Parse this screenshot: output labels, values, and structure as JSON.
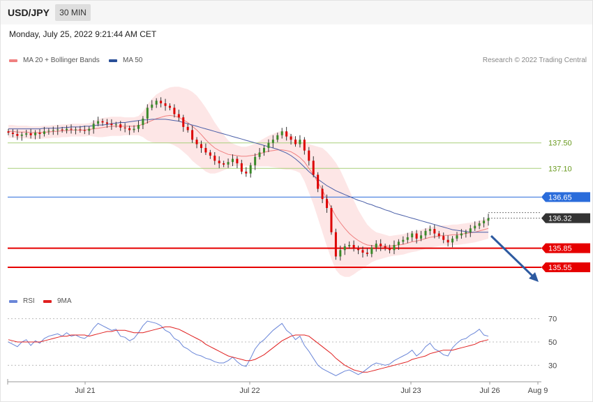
{
  "header": {
    "symbol": "USD/JPY",
    "interval": "30 MIN",
    "datetime": "Monday, July 25, 2022 9:21:44 AM CET"
  },
  "legend": {
    "ma20_label": "MA 20 + Bollinger Bands",
    "ma50_label": "MA 50",
    "rsi_label": "RSI",
    "ma9_label": "9MA",
    "copyright": "Research © 2022 Trading Central"
  },
  "colors": {
    "up": "#3a8a2a",
    "down": "#dd0000",
    "ma20": "#f08080",
    "band_fill": "#fde3e3",
    "ma50": "#4a5fa8",
    "support": "#e60000",
    "resistance_green": "#a8cf7a",
    "pivot_blue": "#2a6cdb",
    "current": "#333333",
    "rsi": "#6a86d8",
    "rsi_ma": "#e02020",
    "forecast_arrow": "#2d5aa0"
  },
  "chart_data": [
    {
      "type": "candlestick",
      "title": "USD/JPY",
      "ylim": [
        135.2,
        138.7
      ],
      "x_ticks": [
        "Jul 21",
        "Jul 22",
        "Jul 23",
        "Jul 26",
        "Aug 9"
      ],
      "levels": [
        {
          "value": 137.5,
          "label": "137.50",
          "kind": "resistance"
        },
        {
          "value": 137.1,
          "label": "137.10",
          "kind": "resistance"
        },
        {
          "value": 136.65,
          "label": "136.65",
          "kind": "pivot"
        },
        {
          "value": 136.32,
          "label": "136.32",
          "kind": "current"
        },
        {
          "value": 135.85,
          "label": "135.85",
          "kind": "support"
        },
        {
          "value": 135.55,
          "label": "135.55",
          "kind": "support"
        }
      ],
      "close": [
        137.66,
        137.64,
        137.61,
        137.63,
        137.65,
        137.62,
        137.66,
        137.64,
        137.68,
        137.69,
        137.7,
        137.71,
        137.7,
        137.72,
        137.71,
        137.71,
        137.7,
        137.69,
        137.72,
        137.8,
        137.84,
        137.82,
        137.8,
        137.78,
        137.79,
        137.74,
        137.73,
        137.7,
        137.72,
        137.78,
        137.88,
        138.05,
        138.1,
        138.16,
        138.12,
        138.08,
        138.05,
        137.95,
        137.9,
        137.75,
        137.7,
        137.55,
        137.48,
        137.42,
        137.35,
        137.3,
        137.22,
        137.18,
        137.16,
        137.2,
        137.25,
        137.18,
        137.05,
        137.02,
        137.15,
        137.28,
        137.35,
        137.42,
        137.5,
        137.55,
        137.62,
        137.68,
        137.6,
        137.55,
        137.48,
        137.55,
        137.38,
        137.22,
        137.0,
        136.78,
        136.62,
        136.48,
        136.1,
        135.72,
        135.82,
        135.88,
        135.9,
        135.85,
        135.82,
        135.78,
        135.76,
        135.86,
        135.92,
        135.88,
        135.85,
        135.82,
        135.9,
        135.95,
        135.98,
        136.02,
        136.08,
        136.0,
        136.05,
        136.12,
        136.15,
        136.08,
        136.04,
        135.98,
        135.94,
        136.0,
        136.05,
        136.08,
        136.1,
        136.16,
        136.2,
        136.24,
        136.28,
        136.32
      ],
      "ma20": [
        137.68,
        137.68,
        137.67,
        137.67,
        137.67,
        137.66,
        137.66,
        137.66,
        137.67,
        137.67,
        137.68,
        137.68,
        137.69,
        137.69,
        137.7,
        137.7,
        137.7,
        137.7,
        137.71,
        137.72,
        137.73,
        137.74,
        137.75,
        137.76,
        137.76,
        137.76,
        137.76,
        137.76,
        137.76,
        137.77,
        137.79,
        137.82,
        137.85,
        137.88,
        137.9,
        137.92,
        137.93,
        137.92,
        137.9,
        137.86,
        137.82,
        137.76,
        137.7,
        137.63,
        137.55,
        137.48,
        137.42,
        137.38,
        137.35,
        137.32,
        137.31,
        137.3,
        137.29,
        137.29,
        137.3,
        137.31,
        137.33,
        137.35,
        137.37,
        137.38,
        137.39,
        137.39,
        137.38,
        137.36,
        137.32,
        137.27,
        137.2,
        137.1,
        137.0,
        136.88,
        136.76,
        136.62,
        136.48,
        136.35,
        136.25,
        136.16,
        136.08,
        136.02,
        135.97,
        135.93,
        135.9,
        135.89,
        135.88,
        135.88,
        135.88,
        135.88,
        135.89,
        135.9,
        135.91,
        135.93,
        135.95,
        135.96,
        135.98,
        136.0,
        136.02,
        136.03,
        136.04,
        136.05,
        136.05,
        136.06,
        136.06,
        136.07,
        136.08,
        136.09,
        136.1,
        136.12,
        136.14,
        136.16
      ],
      "ma50": [
        137.72,
        137.72,
        137.72,
        137.72,
        137.72,
        137.72,
        137.72,
        137.72,
        137.73,
        137.73,
        137.73,
        137.73,
        137.74,
        137.74,
        137.75,
        137.75,
        137.75,
        137.76,
        137.76,
        137.77,
        137.78,
        137.78,
        137.79,
        137.8,
        137.81,
        137.82,
        137.82,
        137.83,
        137.84,
        137.85,
        137.86,
        137.86,
        137.87,
        137.87,
        137.87,
        137.87,
        137.86,
        137.85,
        137.84,
        137.82,
        137.8,
        137.78,
        137.76,
        137.74,
        137.72,
        137.7,
        137.68,
        137.66,
        137.64,
        137.62,
        137.6,
        137.58,
        137.56,
        137.54,
        137.52,
        137.5,
        137.48,
        137.46,
        137.44,
        137.42,
        137.4,
        137.37,
        137.34,
        137.3,
        137.25,
        137.19,
        137.12,
        137.05,
        136.99,
        136.93,
        136.88,
        136.83,
        136.79,
        136.75,
        136.72,
        136.69,
        136.66,
        136.63,
        136.6,
        136.58,
        136.55,
        136.53,
        136.5,
        136.48,
        136.45,
        136.43,
        136.4,
        136.38,
        136.36,
        136.34,
        136.32,
        136.3,
        136.28,
        136.26,
        136.24,
        136.22,
        136.2,
        136.18,
        136.16,
        136.14,
        136.13,
        136.12,
        136.11,
        136.1,
        136.1,
        136.1,
        136.1,
        136.1
      ],
      "band_width": [
        0.1,
        0.1,
        0.1,
        0.1,
        0.1,
        0.1,
        0.1,
        0.1,
        0.1,
        0.1,
        0.1,
        0.1,
        0.1,
        0.1,
        0.1,
        0.1,
        0.1,
        0.1,
        0.1,
        0.12,
        0.14,
        0.15,
        0.15,
        0.15,
        0.15,
        0.15,
        0.14,
        0.14,
        0.14,
        0.15,
        0.2,
        0.28,
        0.34,
        0.38,
        0.4,
        0.42,
        0.44,
        0.46,
        0.48,
        0.5,
        0.52,
        0.54,
        0.54,
        0.52,
        0.5,
        0.46,
        0.4,
        0.34,
        0.28,
        0.22,
        0.18,
        0.16,
        0.15,
        0.15,
        0.16,
        0.18,
        0.2,
        0.22,
        0.24,
        0.26,
        0.28,
        0.3,
        0.3,
        0.28,
        0.26,
        0.24,
        0.3,
        0.38,
        0.46,
        0.56,
        0.66,
        0.74,
        0.8,
        0.84,
        0.82,
        0.76,
        0.68,
        0.58,
        0.48,
        0.4,
        0.32,
        0.26,
        0.22,
        0.2,
        0.18,
        0.16,
        0.16,
        0.16,
        0.16,
        0.16,
        0.16,
        0.16,
        0.16,
        0.16,
        0.16,
        0.16,
        0.16,
        0.16,
        0.16,
        0.16,
        0.16,
        0.16,
        0.16,
        0.16,
        0.16,
        0.16,
        0.16,
        0.16
      ]
    },
    {
      "type": "line",
      "title": "RSI",
      "ylim": [
        20,
        80
      ],
      "y_ticks": [
        30,
        50,
        70
      ],
      "series": [
        {
          "name": "RSI",
          "values": [
            50,
            48,
            46,
            50,
            52,
            47,
            51,
            49,
            53,
            55,
            56,
            57,
            55,
            58,
            55,
            56,
            54,
            53,
            56,
            62,
            66,
            64,
            62,
            60,
            61,
            55,
            54,
            51,
            53,
            58,
            64,
            68,
            67,
            66,
            64,
            60,
            58,
            53,
            51,
            46,
            44,
            41,
            39,
            38,
            36,
            35,
            33,
            32,
            32,
            34,
            37,
            33,
            30,
            29,
            36,
            44,
            49,
            52,
            56,
            60,
            63,
            66,
            60,
            57,
            52,
            55,
            47,
            42,
            36,
            30,
            27,
            25,
            23,
            21,
            23,
            25,
            26,
            24,
            22,
            24,
            27,
            30,
            32,
            31,
            30,
            31,
            34,
            36,
            38,
            40,
            43,
            38,
            41,
            46,
            49,
            44,
            42,
            39,
            38,
            45,
            49,
            52,
            53,
            56,
            58,
            61,
            56,
            55
          ]
        },
        {
          "name": "9MA",
          "values": [
            52,
            51,
            50,
            50,
            50,
            50,
            50,
            50,
            51,
            52,
            53,
            54,
            55,
            55,
            56,
            56,
            56,
            56,
            55,
            56,
            57,
            58,
            59,
            59,
            60,
            60,
            60,
            59,
            58,
            58,
            58,
            59,
            60,
            61,
            62,
            63,
            63,
            62,
            61,
            59,
            57,
            55,
            53,
            51,
            48,
            46,
            44,
            42,
            40,
            38,
            37,
            36,
            35,
            34,
            34,
            35,
            37,
            39,
            42,
            45,
            48,
            51,
            53,
            55,
            56,
            56,
            56,
            55,
            52,
            49,
            46,
            43,
            40,
            36,
            33,
            30,
            28,
            26,
            25,
            24,
            24,
            25,
            26,
            27,
            28,
            29,
            30,
            31,
            32,
            33,
            35,
            36,
            37,
            38,
            40,
            41,
            42,
            43,
            43,
            43,
            44,
            45,
            46,
            47,
            48,
            50,
            51,
            52
          ]
        }
      ]
    }
  ]
}
